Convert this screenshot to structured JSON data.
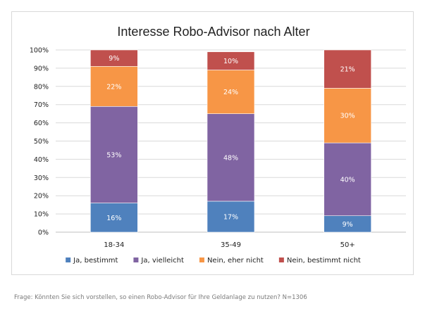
{
  "chart_data": {
    "type": "bar",
    "stacked": true,
    "title": "Interesse Robo-Advisor nach Alter",
    "categories": [
      "18-34",
      "35-49",
      "50+"
    ],
    "series": [
      {
        "name": "Ja, bestimmt",
        "color": "#4f81bd",
        "values": [
          16,
          17,
          9
        ],
        "labels": [
          "16%",
          "17%",
          "9%"
        ]
      },
      {
        "name": "Ja, vielleicht",
        "color": "#8064a2",
        "values": [
          53,
          48,
          40
        ],
        "labels": [
          "53%",
          "48%",
          "40%"
        ]
      },
      {
        "name": "Nein, eher nicht",
        "color": "#f79646",
        "values": [
          22,
          24,
          30
        ],
        "labels": [
          "22%",
          "24%",
          "30%"
        ]
      },
      {
        "name": "Nein, bestimmt nicht",
        "color": "#c0504d",
        "values": [
          9,
          10,
          21
        ],
        "labels": [
          "9%",
          "10%",
          "21%"
        ]
      }
    ],
    "ylim": [
      0,
      100
    ],
    "yticks": [
      "0%",
      "10%",
      "20%",
      "30%",
      "40%",
      "50%",
      "60%",
      "70%",
      "80%",
      "90%",
      "100%"
    ],
    "grid": true,
    "legend_position": "bottom"
  },
  "footnote": "Frage: Könnten Sie sich vorstellen, so einen Robo-Advisor für Ihre Geldanlage zu nutzen? N=1306"
}
